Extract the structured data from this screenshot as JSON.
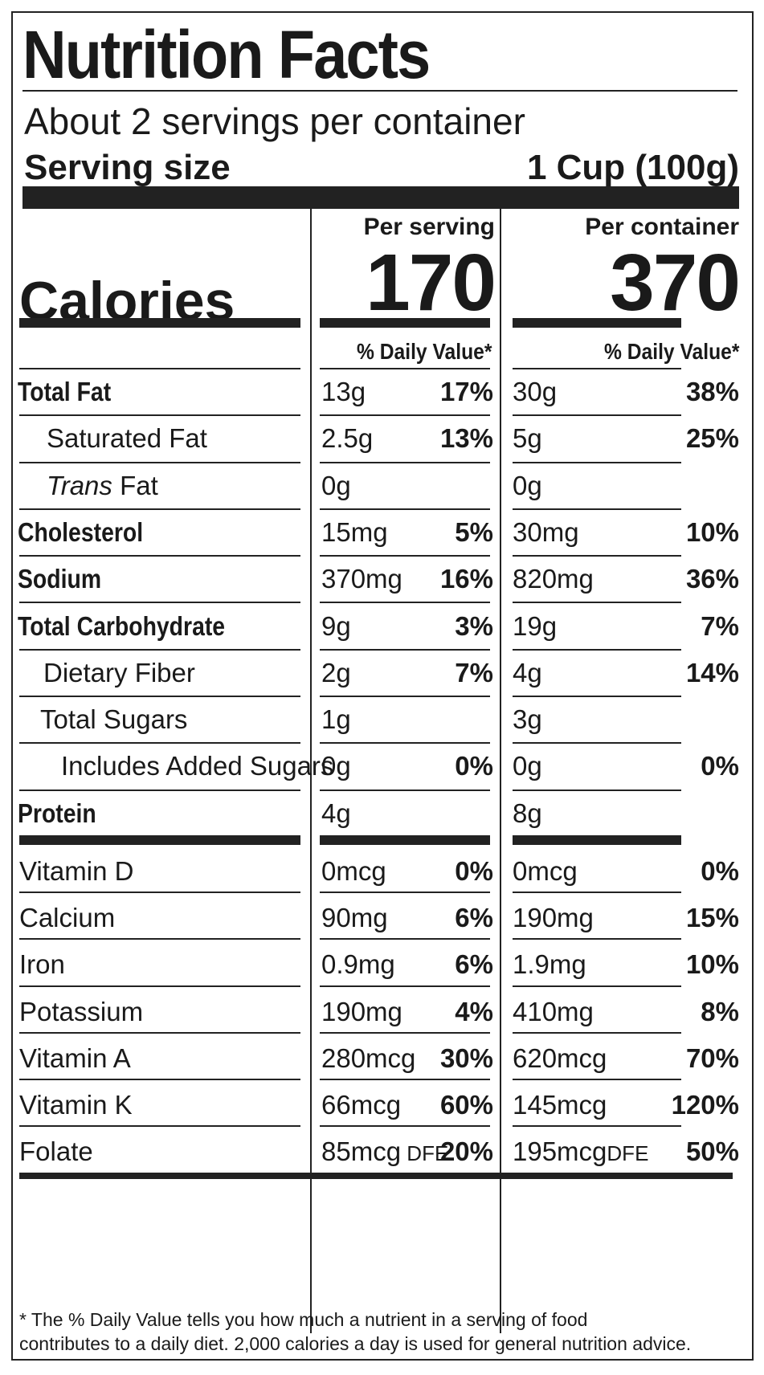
{
  "title": "Nutrition Facts",
  "servings_per_container": "About 2 servings per container",
  "serving_size_label": "Serving size",
  "serving_size_value": "1 Cup (100g)",
  "calories_label": "Calories",
  "columns": {
    "per_serving": {
      "heading": "Per serving",
      "calories": "170",
      "dv_heading": "% Daily Value*"
    },
    "per_container": {
      "heading": "Per container",
      "calories": "370",
      "dv_heading": "% Daily Value*"
    }
  },
  "nutrients": [
    {
      "name": "Total Fat",
      "serving_amount": "13g",
      "serving_dv": "17%",
      "container_amount": "30g",
      "container_dv": "38%"
    },
    {
      "name": "Saturated Fat",
      "serving_amount": "2.5g",
      "serving_dv": "13%",
      "container_amount": "5g",
      "container_dv": "25%"
    },
    {
      "name_italic": "Trans",
      "name_rest": " Fat",
      "serving_amount": "0g",
      "serving_dv": "",
      "container_amount": "0g",
      "container_dv": ""
    },
    {
      "name": "Cholesterol",
      "serving_amount": "15mg",
      "serving_dv": "5%",
      "container_amount": "30mg",
      "container_dv": "10%"
    },
    {
      "name": "Sodium",
      "serving_amount": "370mg",
      "serving_dv": "16%",
      "container_amount": "820mg",
      "container_dv": "36%"
    },
    {
      "name": "Total Carbohydrate",
      "serving_amount": "9g",
      "serving_dv": "3%",
      "container_amount": "19g",
      "container_dv": "7%"
    },
    {
      "name": "Dietary Fiber",
      "serving_amount": "2g",
      "serving_dv": "7%",
      "container_amount": "4g",
      "container_dv": "14%"
    },
    {
      "name": "Total Sugars",
      "serving_amount": "1g",
      "serving_dv": "",
      "container_amount": "3g",
      "container_dv": ""
    },
    {
      "name": "Includes Added Sugars",
      "serving_amount": "0g",
      "serving_dv": "0%",
      "container_amount": "0g",
      "container_dv": "0%"
    },
    {
      "name": "Protein",
      "serving_amount": "4g",
      "serving_dv": "",
      "container_amount": "8g",
      "container_dv": ""
    }
  ],
  "vitamins": [
    {
      "name": "Vitamin D",
      "serving_amount": "0mcg",
      "serving_dv": "0%",
      "container_amount": "0mcg",
      "container_dv": "0%"
    },
    {
      "name": "Calcium",
      "serving_amount": "90mg",
      "serving_dv": "6%",
      "container_amount": "190mg",
      "container_dv": "15%"
    },
    {
      "name": "Iron",
      "serving_amount": "0.9mg",
      "serving_dv": "6%",
      "container_amount": "1.9mg",
      "container_dv": "10%"
    },
    {
      "name": "Potassium",
      "serving_amount": "190mg",
      "serving_dv": "4%",
      "container_amount": "410mg",
      "container_dv": "8%"
    },
    {
      "name": "Vitamin A",
      "serving_amount": "280mcg",
      "serving_dv": "30%",
      "container_amount": "620mcg",
      "container_dv": "70%"
    },
    {
      "name": "Vitamin K",
      "serving_amount": "66mcg",
      "serving_dv": "60%",
      "container_amount": "145mcg",
      "container_dv": "120%"
    },
    {
      "name": "Folate",
      "serving_amount": "85mcg",
      "serving_amount_suffix": "DFE",
      "serving_dv": "20%",
      "container_amount": "195mcg",
      "container_amount_suffix": "DFE",
      "container_dv": "50%"
    }
  ],
  "footnote_line1": "* The % Daily Value tells you how much a nutrient in a serving of food",
  "footnote_line2": "contributes to a daily diet. 2,000 calories a  day is used for general nutrition advice."
}
